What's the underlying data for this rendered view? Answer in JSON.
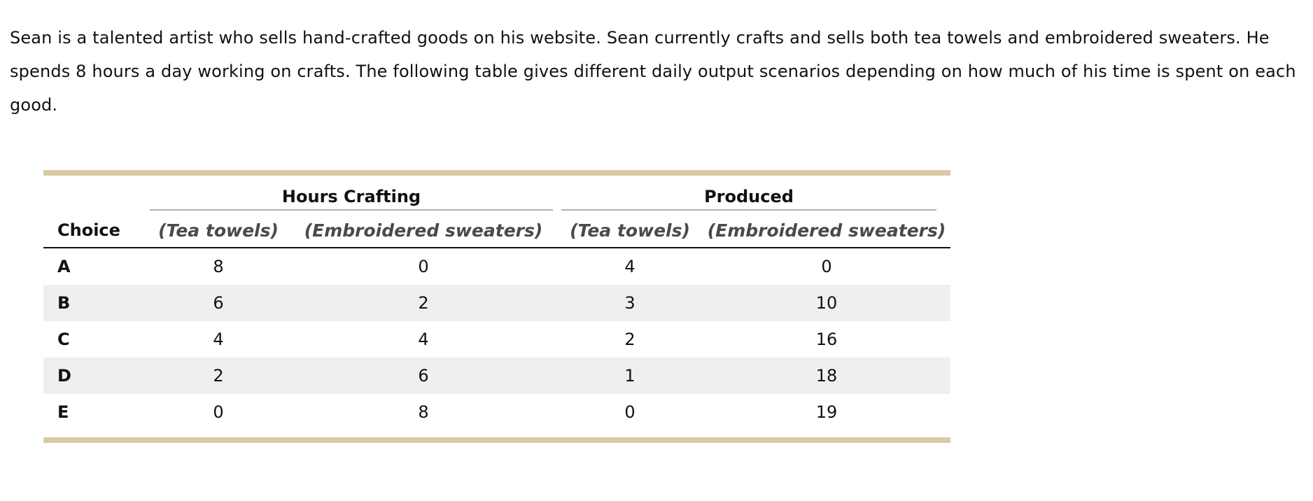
{
  "intro_text": "Sean is a talented artist who sells hand-crafted goods on his website. Sean currently crafts and sells both tea towels and embroidered sweaters. He spends 8 hours a day working on crafts. The following table gives different daily output scenarios depending on how much of his time is spent on each good.",
  "table": {
    "accent_color": "#d8cba4",
    "stripe_color": "#efefef",
    "group_headers": {
      "hours": "Hours Crafting",
      "produced": "Produced"
    },
    "column_headers": {
      "choice": "Choice",
      "hours_tea": "(Tea towels)",
      "hours_sweaters": "(Embroidered sweaters)",
      "prod_tea": "(Tea towels)",
      "prod_sweaters": "(Embroidered sweaters)"
    },
    "rows": [
      {
        "choice": "A",
        "hours_tea": "8",
        "hours_sweaters": "0",
        "prod_tea": "4",
        "prod_sweaters": "0"
      },
      {
        "choice": "B",
        "hours_tea": "6",
        "hours_sweaters": "2",
        "prod_tea": "3",
        "prod_sweaters": "10"
      },
      {
        "choice": "C",
        "hours_tea": "4",
        "hours_sweaters": "4",
        "prod_tea": "2",
        "prod_sweaters": "16"
      },
      {
        "choice": "D",
        "hours_tea": "2",
        "hours_sweaters": "6",
        "prod_tea": "1",
        "prod_sweaters": "18"
      },
      {
        "choice": "E",
        "hours_tea": "0",
        "hours_sweaters": "8",
        "prod_tea": "0",
        "prod_sweaters": "19"
      }
    ]
  }
}
